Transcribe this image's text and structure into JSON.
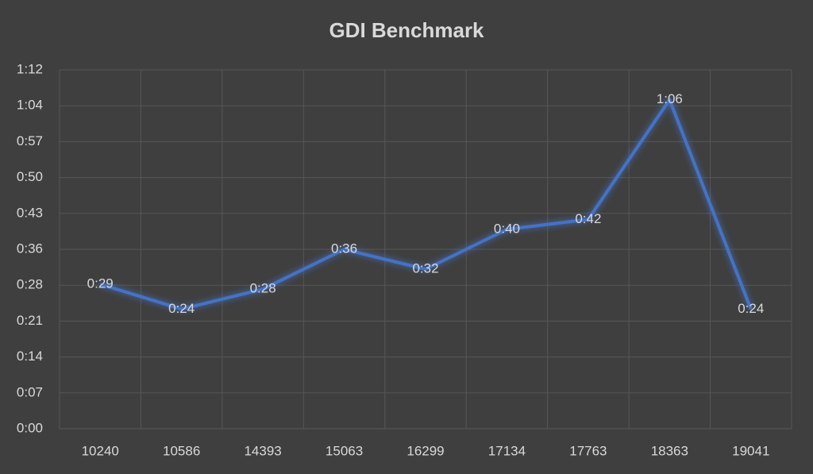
{
  "chart_data": {
    "type": "line",
    "title": "GDI Benchmark",
    "categories": [
      "10240",
      "10586",
      "14393",
      "15063",
      "16299",
      "17134",
      "17763",
      "18363",
      "19041"
    ],
    "values": [
      29,
      24,
      28,
      36,
      32,
      40,
      42,
      66,
      24
    ],
    "value_labels": [
      "0:29",
      "0:24",
      "0:28",
      "0:36",
      "0:32",
      "0:40",
      "0:42",
      "1:06",
      "0:24"
    ],
    "color": "#4472c4",
    "ylim": [
      0,
      72
    ],
    "yticks": [
      {
        "value": 0,
        "label": "0:00"
      },
      {
        "value": 7.2,
        "label": "0:07"
      },
      {
        "value": 14.4,
        "label": "0:14"
      },
      {
        "value": 21.6,
        "label": "0:21"
      },
      {
        "value": 28.8,
        "label": "0:28"
      },
      {
        "value": 36,
        "label": "0:36"
      },
      {
        "value": 43.2,
        "label": "0:43"
      },
      {
        "value": 50.4,
        "label": "0:50"
      },
      {
        "value": 57.6,
        "label": "0:57"
      },
      {
        "value": 64.8,
        "label": "1:04"
      },
      {
        "value": 72,
        "label": "1:12"
      }
    ],
    "grid": true
  }
}
